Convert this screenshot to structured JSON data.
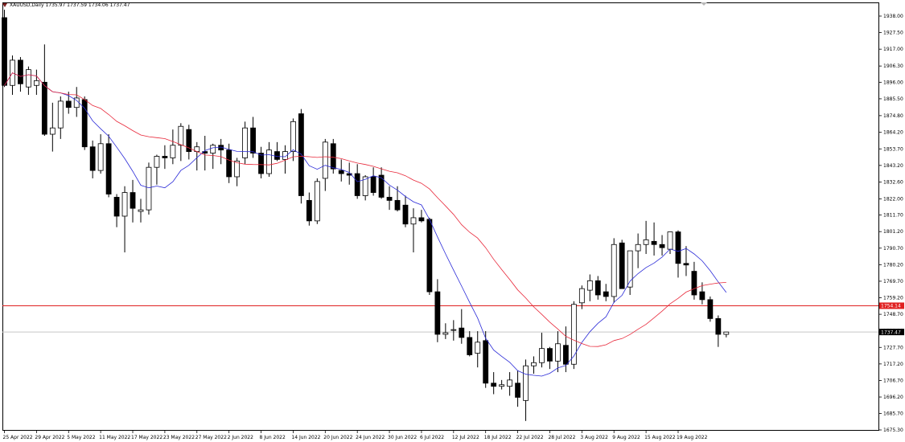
{
  "header": {
    "symbol": "XAUUSD,Daily",
    "ohlc": "1735.97 1737.59 1734.06 1737.47"
  },
  "colors": {
    "bull_body": "#ffffff",
    "bear_body": "#000000",
    "ma_fast": "#2b2bd8",
    "ma_slow": "#e8283a",
    "hline": "#e02020",
    "price_line": "#c8c8c8"
  },
  "chart_data": {
    "type": "candlestick",
    "ylim": [
      1675.3,
      1948.0
    ],
    "yticks": [
      "1938.00",
      "1927.50",
      "1917.00",
      "1906.30",
      "1896.00",
      "1885.50",
      "1874.80",
      "1864.20",
      "1853.70",
      "1843.20",
      "1832.60",
      "1822.00",
      "1811.70",
      "1801.20",
      "1790.70",
      "1780.20",
      "1769.70",
      "1759.20",
      "1748.70",
      "1738.20",
      "1727.70",
      "1717.20",
      "1706.70",
      "1696.20",
      "1685.70",
      "1675.30"
    ],
    "xticks": [
      {
        "index": 0,
        "label": "25 Apr 2022"
      },
      {
        "index": 4,
        "label": "29 Apr 2022"
      },
      {
        "index": 8,
        "label": "5 May 2022"
      },
      {
        "index": 12,
        "label": "11 May 2022"
      },
      {
        "index": 16,
        "label": "17 May 2022"
      },
      {
        "index": 20,
        "label": "23 May 2022"
      },
      {
        "index": 24,
        "label": "27 May 2022"
      },
      {
        "index": 28,
        "label": "2 Jun 2022"
      },
      {
        "index": 32,
        "label": "8 Jun 2022"
      },
      {
        "index": 36,
        "label": "14 Jun 2022"
      },
      {
        "index": 40,
        "label": "20 Jun 2022"
      },
      {
        "index": 44,
        "label": "24 Jun 2022"
      },
      {
        "index": 48,
        "label": "30 Jun 2022"
      },
      {
        "index": 52,
        "label": "6 Jul 2022"
      },
      {
        "index": 56,
        "label": "12 Jul 2022"
      },
      {
        "index": 60,
        "label": "18 Jul 2022"
      },
      {
        "index": 64,
        "label": "22 Jul 2022"
      },
      {
        "index": 68,
        "label": "28 Jul 2022"
      },
      {
        "index": 72,
        "label": "3 Aug 2022"
      },
      {
        "index": 76,
        "label": "9 Aug 2022"
      },
      {
        "index": 80,
        "label": "15 Aug 2022"
      },
      {
        "index": 84,
        "label": "19 Aug 2022"
      }
    ],
    "hline": {
      "value": 1754.14,
      "label": "1754.14"
    },
    "last_price": {
      "value": 1737.47,
      "label": "1737.47"
    },
    "candles": [
      {
        "o": 1937,
        "h": 1942,
        "l": 1893,
        "c": 1894
      },
      {
        "o": 1894,
        "h": 1913,
        "l": 1888,
        "c": 1910
      },
      {
        "o": 1910,
        "h": 1912,
        "l": 1890,
        "c": 1895
      },
      {
        "o": 1893,
        "h": 1906,
        "l": 1888,
        "c": 1904
      },
      {
        "o": 1894,
        "h": 1904,
        "l": 1888,
        "c": 1897
      },
      {
        "o": 1896,
        "h": 1920,
        "l": 1862,
        "c": 1863
      },
      {
        "o": 1863,
        "h": 1883,
        "l": 1852,
        "c": 1867
      },
      {
        "o": 1867,
        "h": 1887,
        "l": 1860,
        "c": 1884
      },
      {
        "o": 1884,
        "h": 1890,
        "l": 1876,
        "c": 1880
      },
      {
        "o": 1880,
        "h": 1893,
        "l": 1874,
        "c": 1886
      },
      {
        "o": 1885,
        "h": 1887,
        "l": 1853,
        "c": 1855
      },
      {
        "o": 1855,
        "h": 1859,
        "l": 1835,
        "c": 1840
      },
      {
        "o": 1840,
        "h": 1863,
        "l": 1838,
        "c": 1857
      },
      {
        "o": 1857,
        "h": 1863,
        "l": 1823,
        "c": 1825
      },
      {
        "o": 1823,
        "h": 1825,
        "l": 1804,
        "c": 1811
      },
      {
        "o": 1811,
        "h": 1830,
        "l": 1788,
        "c": 1826
      },
      {
        "o": 1826,
        "h": 1834,
        "l": 1807,
        "c": 1816
      },
      {
        "o": 1814,
        "h": 1822,
        "l": 1807,
        "c": 1815
      },
      {
        "o": 1815,
        "h": 1845,
        "l": 1812,
        "c": 1842
      },
      {
        "o": 1842,
        "h": 1850,
        "l": 1831,
        "c": 1849
      },
      {
        "o": 1849,
        "h": 1856,
        "l": 1841,
        "c": 1848
      },
      {
        "o": 1848,
        "h": 1866,
        "l": 1844,
        "c": 1856
      },
      {
        "o": 1856,
        "h": 1870,
        "l": 1846,
        "c": 1868
      },
      {
        "o": 1866,
        "h": 1869,
        "l": 1847,
        "c": 1852
      },
      {
        "o": 1852,
        "h": 1858,
        "l": 1840,
        "c": 1855
      },
      {
        "o": 1852,
        "h": 1862,
        "l": 1840,
        "c": 1851
      },
      {
        "o": 1851,
        "h": 1857,
        "l": 1841,
        "c": 1856
      },
      {
        "o": 1856,
        "h": 1860,
        "l": 1844,
        "c": 1853
      },
      {
        "o": 1853,
        "h": 1857,
        "l": 1832,
        "c": 1836
      },
      {
        "o": 1836,
        "h": 1848,
        "l": 1830,
        "c": 1846
      },
      {
        "o": 1848,
        "h": 1871,
        "l": 1844,
        "c": 1867
      },
      {
        "o": 1867,
        "h": 1874,
        "l": 1848,
        "c": 1851
      },
      {
        "o": 1851,
        "h": 1855,
        "l": 1835,
        "c": 1838
      },
      {
        "o": 1838,
        "h": 1858,
        "l": 1836,
        "c": 1853
      },
      {
        "o": 1852,
        "h": 1858,
        "l": 1846,
        "c": 1847
      },
      {
        "o": 1847,
        "h": 1856,
        "l": 1838,
        "c": 1852
      },
      {
        "o": 1852,
        "h": 1873,
        "l": 1846,
        "c": 1871
      },
      {
        "o": 1876,
        "h": 1879,
        "l": 1819,
        "c": 1824
      },
      {
        "o": 1821,
        "h": 1826,
        "l": 1805,
        "c": 1808
      },
      {
        "o": 1808,
        "h": 1835,
        "l": 1806,
        "c": 1833
      },
      {
        "o": 1835,
        "h": 1860,
        "l": 1827,
        "c": 1858
      },
      {
        "o": 1857,
        "h": 1860,
        "l": 1838,
        "c": 1841
      },
      {
        "o": 1840,
        "h": 1847,
        "l": 1833,
        "c": 1838
      },
      {
        "o": 1838,
        "h": 1845,
        "l": 1831,
        "c": 1837
      },
      {
        "o": 1838,
        "h": 1844,
        "l": 1822,
        "c": 1824
      },
      {
        "o": 1824,
        "h": 1837,
        "l": 1821,
        "c": 1836
      },
      {
        "o": 1836,
        "h": 1842,
        "l": 1824,
        "c": 1826
      },
      {
        "o": 1837,
        "h": 1842,
        "l": 1822,
        "c": 1823
      },
      {
        "o": 1823,
        "h": 1830,
        "l": 1815,
        "c": 1821
      },
      {
        "o": 1821,
        "h": 1830,
        "l": 1814,
        "c": 1815
      },
      {
        "o": 1818,
        "h": 1824,
        "l": 1804,
        "c": 1806
      },
      {
        "o": 1806,
        "h": 1816,
        "l": 1788,
        "c": 1810
      },
      {
        "o": 1810,
        "h": 1815,
        "l": 1807,
        "c": 1808
      },
      {
        "o": 1809,
        "h": 1810,
        "l": 1761,
        "c": 1763
      },
      {
        "o": 1763,
        "h": 1771,
        "l": 1731,
        "c": 1736
      },
      {
        "o": 1736,
        "h": 1743,
        "l": 1733,
        "c": 1737
      },
      {
        "o": 1739,
        "h": 1745,
        "l": 1732,
        "c": 1739
      },
      {
        "o": 1740,
        "h": 1752,
        "l": 1730,
        "c": 1734
      },
      {
        "o": 1734,
        "h": 1738,
        "l": 1722,
        "c": 1723
      },
      {
        "o": 1724,
        "h": 1738,
        "l": 1715,
        "c": 1731
      },
      {
        "o": 1732,
        "h": 1738,
        "l": 1702,
        "c": 1705
      },
      {
        "o": 1705,
        "h": 1712,
        "l": 1698,
        "c": 1703
      },
      {
        "o": 1703,
        "h": 1707,
        "l": 1701,
        "c": 1704
      },
      {
        "o": 1703,
        "h": 1712,
        "l": 1697,
        "c": 1707
      },
      {
        "o": 1705,
        "h": 1713,
        "l": 1690,
        "c": 1696
      },
      {
        "o": 1694,
        "h": 1720,
        "l": 1681,
        "c": 1716
      },
      {
        "o": 1716,
        "h": 1722,
        "l": 1711,
        "c": 1718
      },
      {
        "o": 1718,
        "h": 1737,
        "l": 1715,
        "c": 1727
      },
      {
        "o": 1727,
        "h": 1728,
        "l": 1714,
        "c": 1719
      },
      {
        "o": 1719,
        "h": 1738,
        "l": 1712,
        "c": 1730
      },
      {
        "o": 1729,
        "h": 1741,
        "l": 1712,
        "c": 1717
      },
      {
        "o": 1717,
        "h": 1757,
        "l": 1714,
        "c": 1755
      },
      {
        "o": 1756,
        "h": 1767,
        "l": 1752,
        "c": 1765
      },
      {
        "o": 1764,
        "h": 1774,
        "l": 1757,
        "c": 1770
      },
      {
        "o": 1770,
        "h": 1773,
        "l": 1758,
        "c": 1761
      },
      {
        "o": 1763,
        "h": 1768,
        "l": 1757,
        "c": 1760
      },
      {
        "o": 1760,
        "h": 1797,
        "l": 1756,
        "c": 1793
      },
      {
        "o": 1794,
        "h": 1796,
        "l": 1766,
        "c": 1765
      },
      {
        "o": 1766,
        "h": 1788,
        "l": 1761,
        "c": 1789
      },
      {
        "o": 1789,
        "h": 1800,
        "l": 1778,
        "c": 1793
      },
      {
        "o": 1793,
        "h": 1808,
        "l": 1787,
        "c": 1796
      },
      {
        "o": 1795,
        "h": 1807,
        "l": 1786,
        "c": 1793
      },
      {
        "o": 1793,
        "h": 1799,
        "l": 1786,
        "c": 1791
      },
      {
        "o": 1790,
        "h": 1801,
        "l": 1787,
        "c": 1801
      },
      {
        "o": 1801,
        "h": 1802,
        "l": 1772,
        "c": 1781
      },
      {
        "o": 1781,
        "h": 1792,
        "l": 1773,
        "c": 1780
      },
      {
        "o": 1776,
        "h": 1782,
        "l": 1758,
        "c": 1761
      },
      {
        "o": 1763,
        "h": 1769,
        "l": 1755,
        "c": 1758
      },
      {
        "o": 1758,
        "h": 1760,
        "l": 1744,
        "c": 1746
      },
      {
        "o": 1746,
        "h": 1748,
        "l": 1728,
        "c": 1736
      },
      {
        "o": 1735.97,
        "h": 1737.59,
        "l": 1734.06,
        "c": 1737.47
      }
    ]
  }
}
